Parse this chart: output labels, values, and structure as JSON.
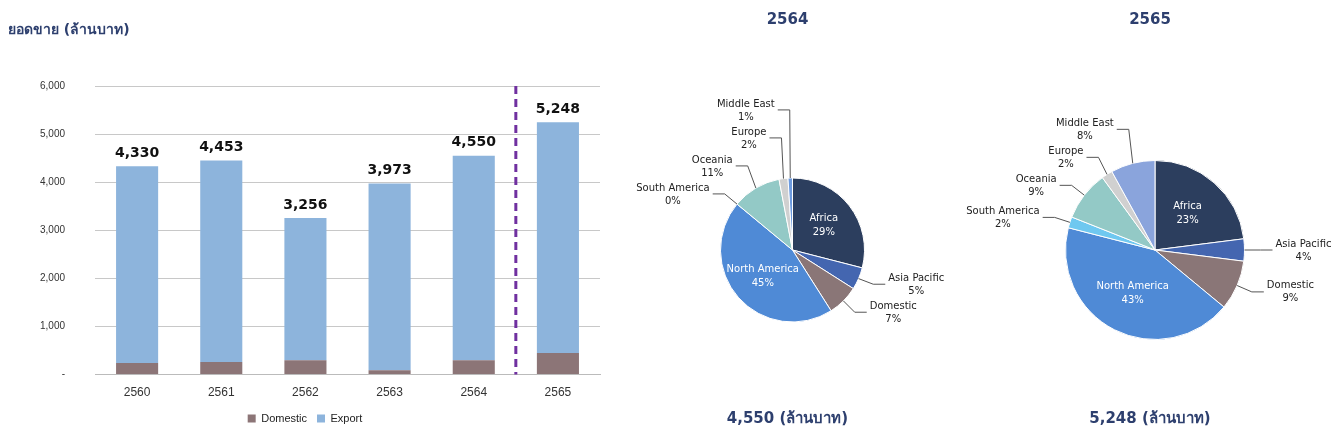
{
  "chart_data": [
    {
      "type": "bar",
      "ylabel": "ยอดขาย (ล้านบาท)",
      "categories": [
        "2560",
        "2561",
        "2562",
        "2563",
        "2564",
        "2565"
      ],
      "stacked": true,
      "series": [
        {
          "name": "Domestic",
          "color": "#8c7577",
          "values": [
            240,
            260,
            300,
            90,
            300,
            450
          ]
        },
        {
          "name": "Export",
          "color": "#8db4dc",
          "values": [
            4090,
            4193,
            2956,
            3883,
            4250,
            4798
          ]
        }
      ],
      "totals": [
        "4,330",
        "4,453",
        "3,256",
        "3,973",
        "4,550",
        "5,248"
      ],
      "ylim": [
        0,
        6000
      ],
      "yticks": [
        {
          "value": 0,
          "label": "-"
        },
        {
          "value": 1000,
          "label": "1,000"
        },
        {
          "value": 2000,
          "label": "2,000"
        },
        {
          "value": 3000,
          "label": "3,000"
        },
        {
          "value": 4000,
          "label": "4,000"
        },
        {
          "value": 5000,
          "label": "5,000"
        },
        {
          "value": 6000,
          "label": "6,000"
        }
      ],
      "ref_lines": [
        {
          "axis": "x",
          "value": "2565",
          "color": "#7030a0",
          "line_style": "dashed"
        }
      ],
      "grid": "y",
      "legend": "bottom"
    },
    {
      "type": "pie",
      "title": "2564",
      "categories": [
        "Africa",
        "Asia Pacific",
        "Domestic",
        "North America",
        "South America",
        "Oceania",
        "Europe",
        "Middle East"
      ],
      "values": [
        29,
        5,
        7,
        45,
        0,
        11,
        2,
        1
      ],
      "value_labels": [
        "29%",
        "5%",
        "7%",
        "45%",
        "0%",
        "11%",
        "2%",
        "1%"
      ],
      "colors": [
        "#2c3e5e",
        "#4466b0",
        "#8a7677",
        "#4f8ad6",
        "#6fc8f0",
        "#93c9c6",
        "#d0d0d0",
        "#6d9be0"
      ],
      "annotations": [
        "4,550 (ล้านบาท)"
      ],
      "legend": false
    },
    {
      "type": "pie",
      "title": "2565",
      "categories": [
        "Africa",
        "Asia Pacific",
        "Domestic",
        "North America",
        "South America",
        "Oceania",
        "Europe",
        "Middle East"
      ],
      "values": [
        23,
        4,
        9,
        43,
        2,
        9,
        2,
        8
      ],
      "value_labels": [
        "23%",
        "4%",
        "9%",
        "43%",
        "2%",
        "9%",
        "2%",
        "8%"
      ],
      "colors": [
        "#2c3e5e",
        "#4466b0",
        "#8a7677",
        "#4f8ad6",
        "#6fc8f0",
        "#93c9c6",
        "#d0d0d0",
        "#8aa4dc"
      ],
      "annotations": [
        "5,248 (ล้านบาท)"
      ],
      "legend": false
    }
  ]
}
